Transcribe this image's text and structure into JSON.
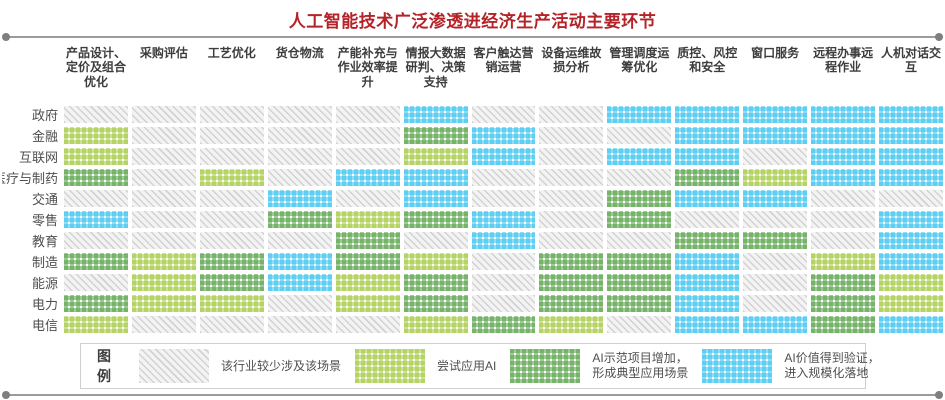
{
  "title": "人工智能技术广泛渗透进经济生产活动主要环节",
  "legend": {
    "label": "图例",
    "items": [
      {
        "key": "none",
        "label": "该行业较少涉及该场景"
      },
      {
        "key": "try",
        "label": "尝试应用AI"
      },
      {
        "key": "demo",
        "label": "AI示范项目增加，\n形成典型应用场景"
      },
      {
        "key": "scale",
        "label": "AI价值得到验证，\n进入规模化落地"
      }
    ]
  },
  "colors": {
    "title_red": "#b42328",
    "level_none_hatch": "#d2d2d2",
    "level_try_green": "#a3c93e",
    "level_demo_green": "#52a043",
    "level_scale_blue": "#35c3ef",
    "rule_gray": "#9b9b9b"
  },
  "chart_data": {
    "type": "heatmap",
    "title": "人工智能技术广泛渗透进经济生产活动主要环节",
    "columns": [
      "产品设计、定价及组合优化",
      "采购评估",
      "工艺优化",
      "货仓物流",
      "产能补充与作业效率提升",
      "情报大数据研判、决策支持",
      "客户触达营销运营",
      "设备运维故损分析",
      "管理调度运筹优化",
      "质控、风控和安全",
      "窗口服务",
      "远程办事远程作业",
      "人机对话交互"
    ],
    "rows": [
      "政府",
      "金融",
      "互联网",
      "医疗与制药",
      "交通",
      "零售",
      "教育",
      "制造",
      "能源",
      "电力",
      "电信"
    ],
    "levels": {
      "0": "该行业较少涉及该场景",
      "1": "尝试应用AI",
      "2": "AI示范项目增加，形成典型应用场景",
      "3": "AI价值得到验证，进入规模化落地"
    },
    "matrix": [
      [
        0,
        0,
        0,
        0,
        0,
        3,
        0,
        0,
        3,
        3,
        3,
        3,
        3
      ],
      [
        1,
        0,
        0,
        0,
        0,
        2,
        3,
        0,
        0,
        3,
        3,
        3,
        3
      ],
      [
        1,
        0,
        0,
        0,
        0,
        1,
        3,
        0,
        3,
        3,
        0,
        3,
        3
      ],
      [
        2,
        0,
        1,
        0,
        3,
        3,
        0,
        0,
        0,
        2,
        1,
        3,
        3
      ],
      [
        0,
        0,
        0,
        3,
        0,
        3,
        0,
        0,
        2,
        3,
        3,
        0,
        0
      ],
      [
        3,
        0,
        0,
        2,
        1,
        2,
        3,
        0,
        2,
        0,
        0,
        0,
        3
      ],
      [
        0,
        0,
        0,
        0,
        2,
        0,
        3,
        0,
        0,
        2,
        2,
        0,
        3
      ],
      [
        2,
        1,
        2,
        3,
        2,
        1,
        0,
        2,
        2,
        3,
        0,
        1,
        3
      ],
      [
        0,
        1,
        2,
        3,
        1,
        2,
        0,
        2,
        2,
        3,
        0,
        2,
        1
      ],
      [
        2,
        1,
        1,
        0,
        1,
        2,
        0,
        2,
        2,
        3,
        0,
        2,
        1
      ],
      [
        1,
        0,
        0,
        0,
        0,
        1,
        2,
        1,
        0,
        3,
        3,
        2,
        3
      ]
    ],
    "legend_position": "bottom",
    "grid": false
  }
}
